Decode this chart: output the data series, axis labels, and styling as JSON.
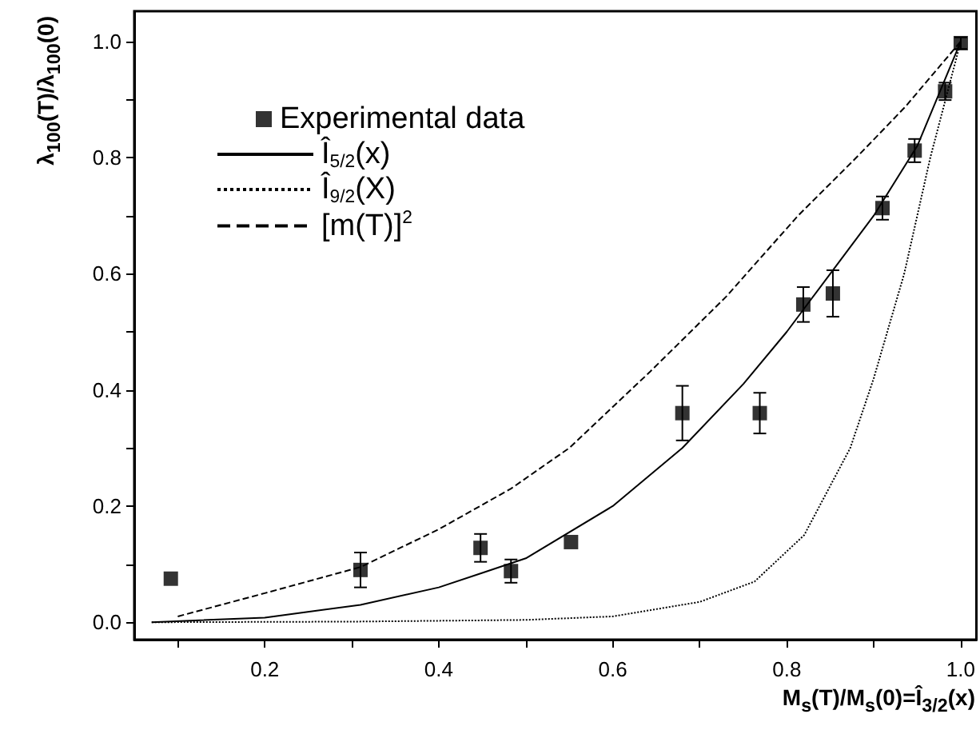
{
  "chart_data": {
    "type": "scatter",
    "xlabel": "M$_{s}$(T)/M$_{s}$(0)=Î$_{3/2}$(x)",
    "ylabel": "λ$_{100}$(T)/λ$_{100}$(0)",
    "xlim": [
      0.05,
      1.018
    ],
    "ylim": [
      -0.03,
      1.052
    ],
    "xticks": [
      {
        "value": 0.1,
        "label": null
      },
      {
        "value": 0.2,
        "label": "0.2"
      },
      {
        "value": 0.3,
        "label": null
      },
      {
        "value": 0.4,
        "label": "0.4"
      },
      {
        "value": 0.5,
        "label": null
      },
      {
        "value": 0.6,
        "label": "0.6"
      },
      {
        "value": 0.7,
        "label": null
      },
      {
        "value": 0.8,
        "label": "0.8"
      },
      {
        "value": 0.9,
        "label": null
      },
      {
        "value": 1.0,
        "label": "1.0"
      }
    ],
    "yticks": [
      {
        "value": 0,
        "label": "0.0"
      },
      {
        "value": 0.1,
        "label": null
      },
      {
        "value": 0.2,
        "label": "0.2"
      },
      {
        "value": 0.3,
        "label": null
      },
      {
        "value": 0.4,
        "label": "0.4"
      },
      {
        "value": 0.5,
        "label": null
      },
      {
        "value": 0.6,
        "label": "0.6"
      },
      {
        "value": 0.7,
        "label": null
      },
      {
        "value": 0.8,
        "label": "0.8"
      },
      {
        "value": 0.9,
        "label": null
      },
      {
        "value": 1.0,
        "label": "1.0"
      }
    ],
    "legend": "top left",
    "grid": false,
    "series": [
      {
        "name": "Experimental data",
        "marker": "square",
        "color": "#000000",
        "x": [
          0.092,
          0.31,
          0.448,
          0.483,
          0.552,
          0.68,
          0.769,
          0.819,
          0.853,
          0.91,
          0.947,
          0.982,
          1.0
        ],
        "values": [
          0.075,
          0.09,
          0.128,
          0.088,
          0.138,
          0.36,
          0.36,
          0.547,
          0.566,
          0.713,
          0.812,
          0.914,
          0.997
        ],
        "errors": [
          null,
          0.03,
          0.024,
          0.02,
          null,
          0.047,
          0.035,
          0.03,
          0.04,
          0.02,
          0.02,
          0.015,
          0.01
        ]
      },
      {
        "name": "Î$_{5/2}$(x)",
        "type": "line",
        "line_style": "solid",
        "color": "#000000",
        "x": [
          0.07,
          0.2,
          0.31,
          0.4,
          0.45,
          0.5,
          0.6,
          0.68,
          0.75,
          0.8,
          0.85,
          0.9,
          0.95,
          1.0
        ],
        "values": [
          0,
          0.008,
          0.03,
          0.06,
          0.085,
          0.11,
          0.2,
          0.3,
          0.41,
          0.5,
          0.6,
          0.7,
          0.82,
          1.0
        ]
      },
      {
        "name": "Î$_{9/2}$(X)",
        "type": "line",
        "line_style": "dotted",
        "color": "#000000",
        "x": [
          0.07,
          0.3,
          0.5,
          0.6,
          0.7,
          0.763,
          0.82,
          0.873,
          0.9,
          0.935,
          0.965,
          1.0
        ],
        "values": [
          0,
          0.001,
          0.004,
          0.01,
          0.035,
          0.07,
          0.15,
          0.3,
          0.42,
          0.6,
          0.8,
          1.0
        ]
      },
      {
        "name": "[m(T)]$^{2}$",
        "type": "line",
        "line_style": "dashed",
        "color": "#000000",
        "x": [
          0.1,
          0.2,
          0.31,
          0.4,
          0.483,
          0.55,
          0.642,
          0.73,
          0.813,
          0.88,
          0.936,
          1.0
        ],
        "values": [
          0.01,
          0.05,
          0.095,
          0.16,
          0.23,
          0.3,
          0.43,
          0.56,
          0.7,
          0.8,
          0.887,
          1.0
        ]
      }
    ]
  }
}
